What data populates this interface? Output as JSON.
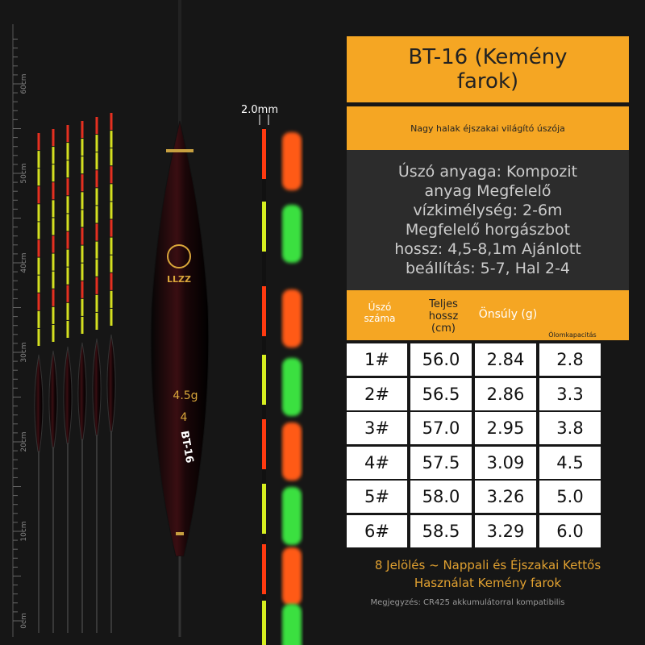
{
  "ruler": {
    "labels": [
      "60cm",
      "50cm",
      "40cm",
      "30cm",
      "20cm",
      "10cm",
      "0cm"
    ]
  },
  "tip_width": "2.0mm",
  "float_text": {
    "brand": "LLZZ",
    "weight": "4.5g",
    "number": "4",
    "model": "BT-16"
  },
  "header": {
    "title": "BT-16 (Kemény farok)",
    "subtitle": "Nagy halak éjszakai világító úszója",
    "description": "Úszó anyaga: Kompozit anyag Megfelelő vízkimélység: 2-6m Megfelelő horgászbot hossz: 4,5-8,1m Ajánlott beállítás: 5-7, Hal 2-4"
  },
  "table": {
    "columns": [
      "Úszó száma",
      "Teljes hossz (cm)",
      "Önsúly (g)",
      "Ólomkapacitás"
    ],
    "rows": [
      [
        "1#",
        "56.0",
        "2.84",
        "2.8"
      ],
      [
        "2#",
        "56.5",
        "2.86",
        "3.3"
      ],
      [
        "3#",
        "57.0",
        "2.95",
        "3.8"
      ],
      [
        "4#",
        "57.5",
        "3.09",
        "4.5"
      ],
      [
        "5#",
        "58.0",
        "3.26",
        "5.0"
      ],
      [
        "6#",
        "58.5",
        "3.29",
        "6.0"
      ]
    ]
  },
  "footer": {
    "feature": "8 Jelölés ~ Nappali és Éjszakai Kettős Használat Kemény farok",
    "note": "Megjegyzés: CR425 akkumulátorral kompatibilis"
  }
}
